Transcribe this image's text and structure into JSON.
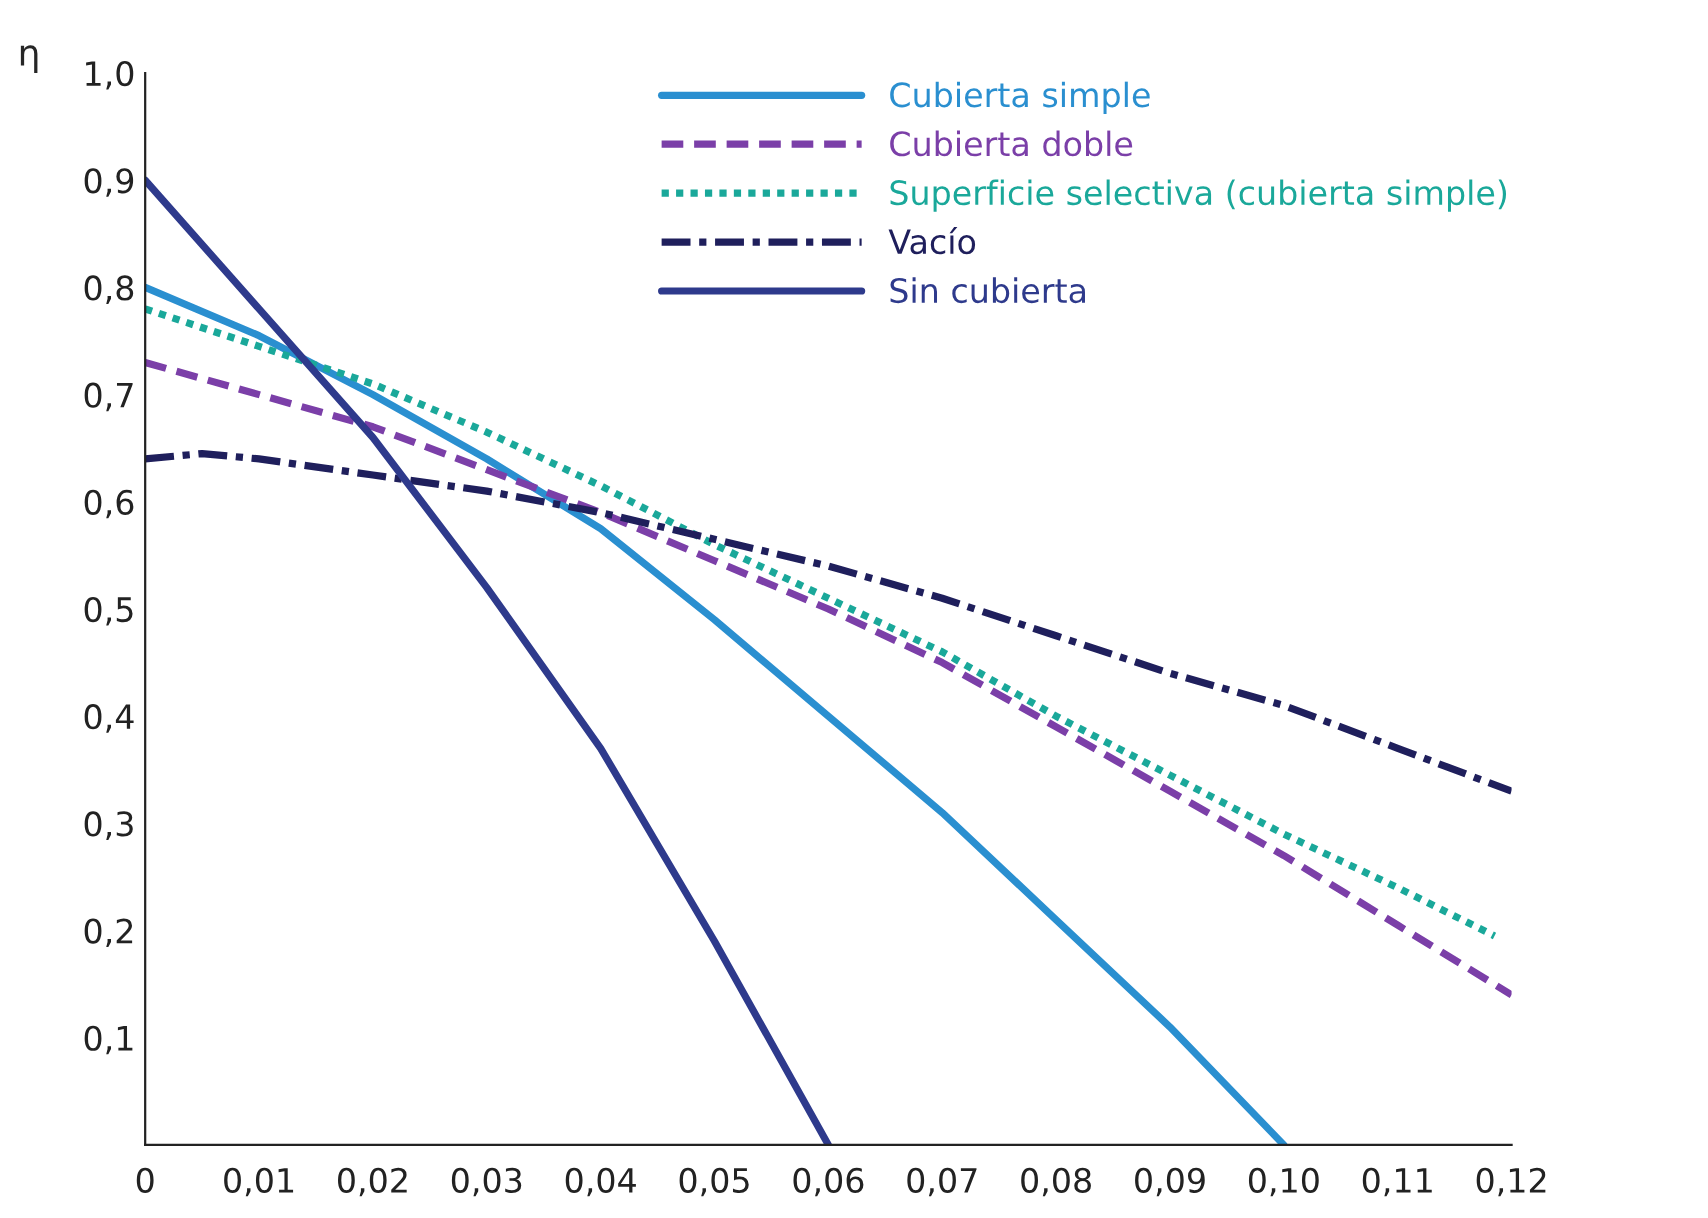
{
  "chart_data": {
    "type": "line",
    "ylabel": "η",
    "xlim": [
      0,
      0.12
    ],
    "ylim": [
      0,
      1.0
    ],
    "xticks": [
      {
        "value": 0,
        "label": "0"
      },
      {
        "value": 0.01,
        "label": "0,01"
      },
      {
        "value": 0.02,
        "label": "0,02"
      },
      {
        "value": 0.03,
        "label": "0,03"
      },
      {
        "value": 0.04,
        "label": "0,04"
      },
      {
        "value": 0.05,
        "label": "0,05"
      },
      {
        "value": 0.06,
        "label": "0,06"
      },
      {
        "value": 0.07,
        "label": "0,07"
      },
      {
        "value": 0.08,
        "label": "0,08"
      },
      {
        "value": 0.09,
        "label": "0,09"
      },
      {
        "value": 0.1,
        "label": "0,10"
      },
      {
        "value": 0.11,
        "label": "0,11"
      },
      {
        "value": 0.12,
        "label": "0,12"
      }
    ],
    "yticks": [
      {
        "value": 0.1,
        "label": "0,1"
      },
      {
        "value": 0.2,
        "label": "0,2"
      },
      {
        "value": 0.3,
        "label": "0,3"
      },
      {
        "value": 0.4,
        "label": "0,4"
      },
      {
        "value": 0.5,
        "label": "0,5"
      },
      {
        "value": 0.6,
        "label": "0,6"
      },
      {
        "value": 0.7,
        "label": "0,7"
      },
      {
        "value": 0.8,
        "label": "0,8"
      },
      {
        "value": 0.9,
        "label": "0,9"
      },
      {
        "value": 1.0,
        "label": "1,0"
      }
    ],
    "grid": false,
    "legend": "top right",
    "marker": "none",
    "series": [
      {
        "name": "Cubierta simple",
        "color": "#2a8fd0",
        "line_style": "solid",
        "x": [
          0,
          0.01,
          0.02,
          0.03,
          0.04,
          0.05,
          0.06,
          0.07,
          0.08,
          0.09,
          0.1
        ],
        "values": [
          0.8,
          0.755,
          0.7,
          0.64,
          0.575,
          0.49,
          0.4,
          0.31,
          0.21,
          0.11,
          0
        ]
      },
      {
        "name": "Cubierta doble",
        "color": "#7b3fa8",
        "line_style": "dashed",
        "x": [
          0,
          0.01,
          0.02,
          0.03,
          0.04,
          0.05,
          0.06,
          0.07,
          0.08,
          0.09,
          0.1,
          0.11,
          0.12
        ],
        "values": [
          0.73,
          0.7,
          0.67,
          0.63,
          0.59,
          0.545,
          0.5,
          0.45,
          0.39,
          0.33,
          0.27,
          0.205,
          0.14
        ]
      },
      {
        "name": "Superficie selectiva (cubierta simple)",
        "color": "#1aa89a",
        "line_style": "dotted",
        "x": [
          0,
          0.01,
          0.02,
          0.03,
          0.04,
          0.05,
          0.06,
          0.07,
          0.08,
          0.09,
          0.1,
          0.11,
          0.1185
        ],
        "values": [
          0.78,
          0.745,
          0.71,
          0.665,
          0.615,
          0.56,
          0.51,
          0.46,
          0.4,
          0.345,
          0.29,
          0.24,
          0.195
        ]
      },
      {
        "name": "Vacío",
        "color": "#1f1f5c",
        "line_style": "dashdot",
        "x": [
          0,
          0.005,
          0.01,
          0.02,
          0.03,
          0.04,
          0.05,
          0.06,
          0.07,
          0.08,
          0.09,
          0.1,
          0.11,
          0.12
        ],
        "values": [
          0.64,
          0.645,
          0.64,
          0.625,
          0.61,
          0.59,
          0.565,
          0.54,
          0.51,
          0.475,
          0.44,
          0.41,
          0.37,
          0.33
        ]
      },
      {
        "name": "Sin cubierta",
        "color": "#2e3a8c",
        "line_style": "solid",
        "x": [
          0,
          0.01,
          0.02,
          0.03,
          0.04,
          0.05,
          0.06
        ],
        "values": [
          0.9,
          0.78,
          0.66,
          0.52,
          0.37,
          0.19,
          0
        ]
      }
    ]
  }
}
